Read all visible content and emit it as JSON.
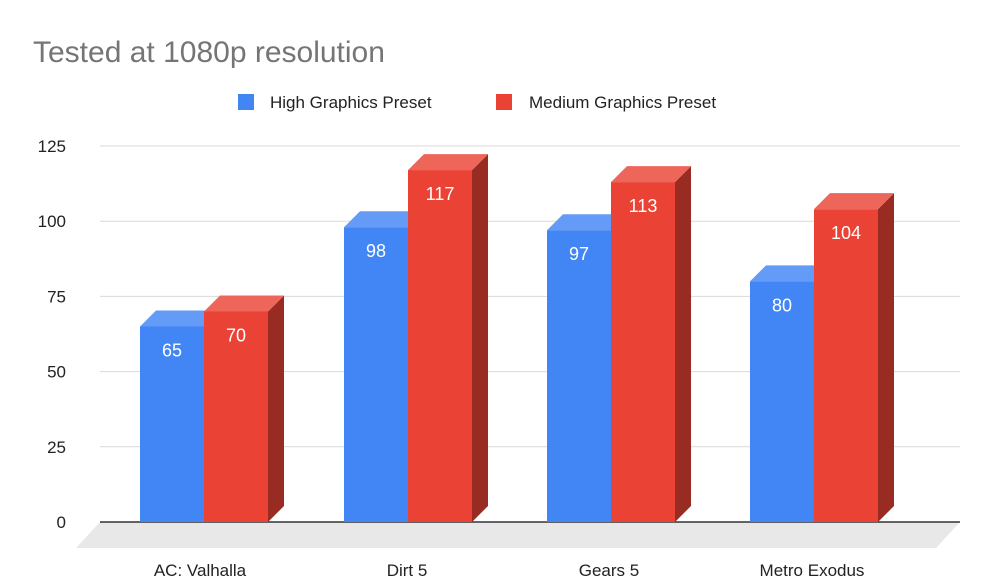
{
  "chart_data": {
    "type": "bar",
    "title": "Tested at 1080p resolution",
    "xlabel": "",
    "ylabel": "",
    "categories": [
      "AC: Valhalla",
      "Dirt 5",
      "Gears 5",
      "Metro Exodus"
    ],
    "series": [
      {
        "name": "High Graphics Preset",
        "values": [
          65,
          98,
          97,
          80
        ],
        "color": "#4285f4"
      },
      {
        "name": "Medium Graphics Preset",
        "values": [
          70,
          117,
          113,
          104
        ],
        "color": "#ea4335"
      }
    ],
    "ylim": [
      0,
      125
    ],
    "yticks": [
      0,
      25,
      50,
      75,
      100,
      125
    ],
    "grid": true,
    "legend_position": "top",
    "style": "3d"
  }
}
